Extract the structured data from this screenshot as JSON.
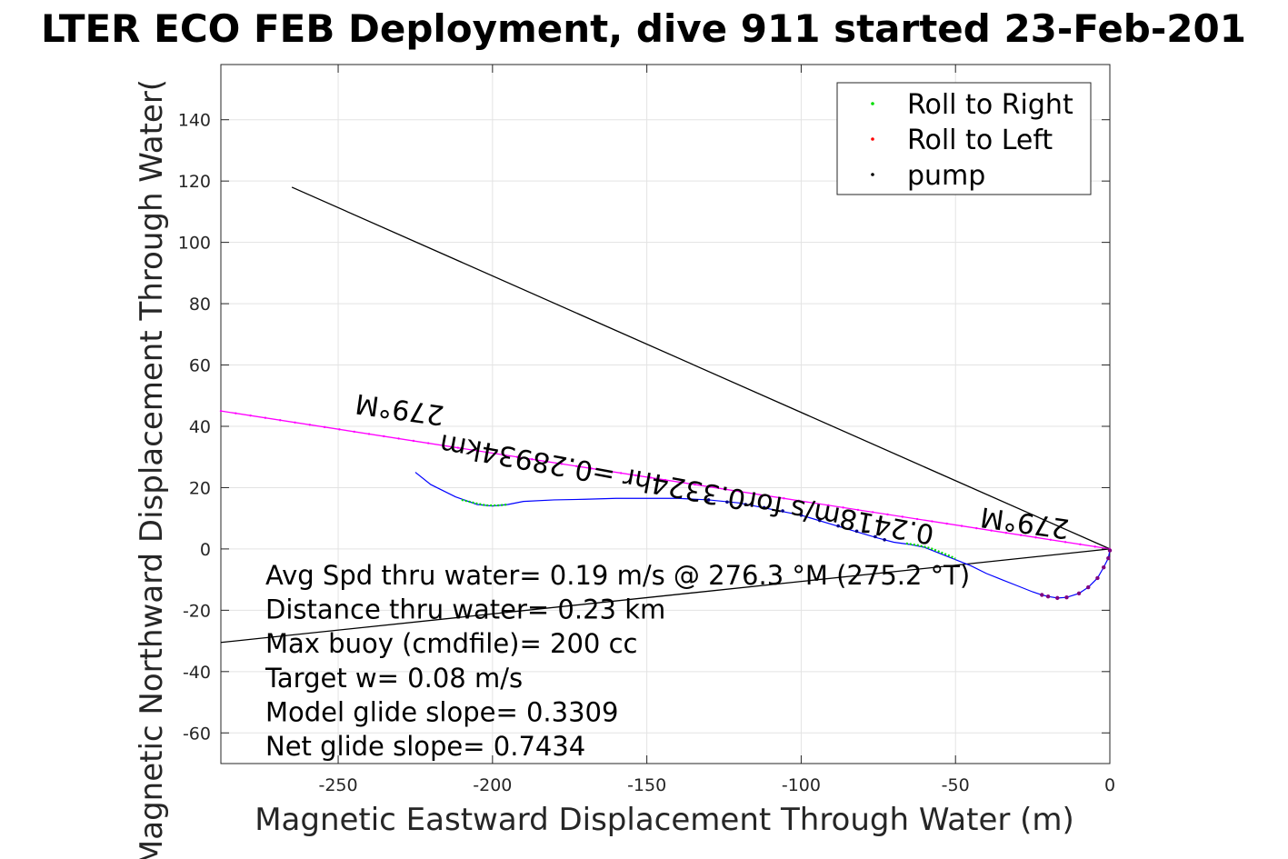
{
  "chart_data": {
    "type": "line",
    "title": "LTER ECO FEB Deployment, dive 911 started 23-Feb-201",
    "xlabel": "Magnetic Eastward Displacement Through Water (m)",
    "ylabel": "Magnetic Northward Displacement Through Water(",
    "xlim": [
      -288,
      0
    ],
    "ylim": [
      -70,
      158
    ],
    "xticks": [
      -250,
      -200,
      -150,
      -100,
      -50,
      0
    ],
    "yticks": [
      -60,
      -40,
      -20,
      0,
      20,
      40,
      60,
      80,
      100,
      120,
      140
    ],
    "grid": true,
    "legend_position": "top-right",
    "legend": [
      "Roll to Right",
      "Roll to Left",
      "pump"
    ],
    "colors": {
      "track": "#0000ff",
      "roll_right": "#00dd00",
      "roll_left": "#ff0000",
      "pump": "#000000",
      "heading_line": "#000000",
      "magenta_line": "#ff00ff",
      "navy_dots": "#000080",
      "purple_dots": "#800080"
    },
    "track": {
      "x": [
        -225,
        -220,
        -212,
        -205,
        -200,
        -195,
        -190,
        -180,
        -170,
        -160,
        -150,
        -140,
        -130,
        -120,
        -110,
        -100,
        -90,
        -80,
        -75,
        -70,
        -65,
        -60,
        -55,
        -50,
        -45,
        -40,
        -35,
        -30,
        -25,
        -22
      ],
      "y": [
        25,
        21,
        17,
        14.5,
        14,
        14.5,
        15.5,
        16,
        16.2,
        16.5,
        16.5,
        16.5,
        16,
        15,
        13,
        11,
        8,
        5,
        3.5,
        2.2,
        1.5,
        0.5,
        -1.5,
        -3.5,
        -5.5,
        -8,
        -10,
        -12,
        -14,
        -15
      ]
    },
    "loop": {
      "x": [
        -22,
        -20,
        -17,
        -14,
        -10,
        -7,
        -4,
        -2,
        -0.5,
        0
      ],
      "y": [
        -15,
        -15.5,
        -16,
        -15.8,
        -14.5,
        -12.5,
        -9.5,
        -6,
        -3,
        -0.5
      ]
    },
    "roll_right_segments": [
      {
        "x": [
          -210,
          -205,
          -202,
          -198,
          -195
        ],
        "y": [
          16,
          14.8,
          14.2,
          14.2,
          14.5
        ]
      },
      {
        "x": [
          -66,
          -62,
          -58,
          -55,
          -52,
          -50
        ],
        "y": [
          1.8,
          1.2,
          0.2,
          -1,
          -2.2,
          -3.2
        ]
      }
    ],
    "navy_dots": {
      "x": [
        -130,
        -124,
        -118,
        -112,
        -106,
        -100,
        -94,
        -88,
        -82,
        -76,
        -73
      ],
      "y": [
        16,
        15.3,
        14.5,
        13.5,
        12.4,
        11,
        9.3,
        7.5,
        5.8,
        4,
        3
      ]
    },
    "lines": [
      {
        "name": "",
        "x": [
          -265,
          0
        ],
        "y": [
          118,
          0
        ],
        "color": "#000000"
      },
      {
        "name": "",
        "x": [
          -288,
          0
        ],
        "y": [
          45,
          0
        ],
        "color": "#ff00ff"
      },
      {
        "name": "",
        "x": [
          -288,
          0
        ],
        "y": [
          -30.5,
          0
        ],
        "color": "#000000"
      }
    ],
    "annotations": [
      {
        "text": "279°M",
        "x": -230,
        "y": 46,
        "rotate": 188
      },
      {
        "text": "279°M",
        "x": -27.5,
        "y": 9,
        "rotate": 188
      },
      {
        "text": "0.2418m/s for0.3324hr =0.28934km",
        "x": -137,
        "y": 20,
        "rotate": 190.5
      }
    ],
    "stats": [
      "Avg Spd thru water=  0.19 m/s @ 276.3 °M (275.2 °T)",
      "Distance thru water=  0.23 km",
      "Max buoy (cmdfile)= 200 cc",
      "Target w= 0.08 m/s",
      "Model glide slope= 0.3309",
      "Net glide slope= 0.7434"
    ]
  }
}
